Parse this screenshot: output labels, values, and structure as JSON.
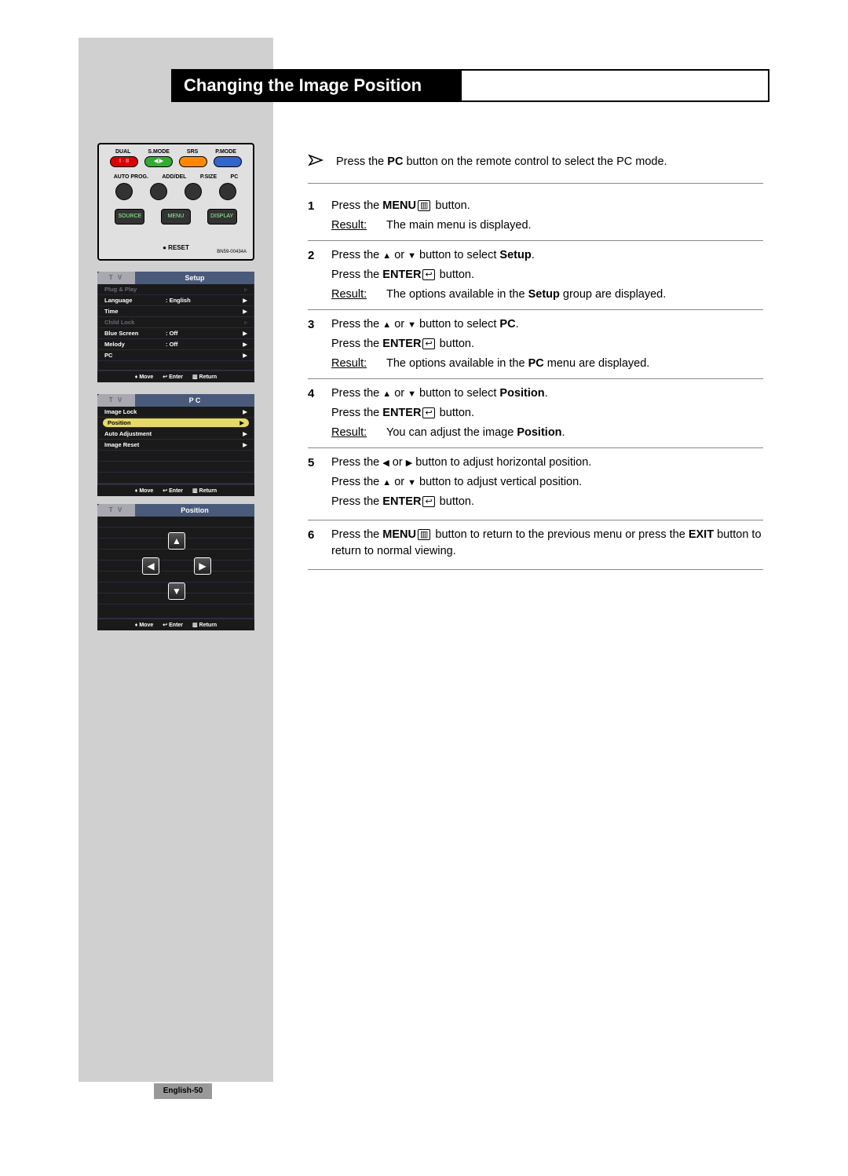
{
  "title": "Changing the Image Position",
  "page_label": "English-50",
  "note": {
    "pre": "Press the ",
    "bold": "PC",
    "post": " button on the remote control to select the PC mode."
  },
  "remote": {
    "row1": [
      "DUAL",
      "S.MODE",
      "SRS",
      "P.MODE"
    ],
    "pill_red": "I · II",
    "pill_green": "◀⸽▶",
    "row2": [
      "AUTO PROG.",
      "ADD/DEL",
      "P.SIZE",
      "PC"
    ],
    "mid": [
      "SOURCE",
      "MENU",
      "DISPLAY"
    ],
    "reset": "● RESET",
    "model": "BN59-00434A"
  },
  "osd_setup": {
    "tv": "T V",
    "title": "Setup",
    "rows": [
      {
        "label": "Plug & Play",
        "val": "",
        "dim": true,
        "arrow": "▹"
      },
      {
        "label": "Language",
        "val": ":  English",
        "dim": false,
        "arrow": "▶"
      },
      {
        "label": "Time",
        "val": "",
        "dim": false,
        "arrow": "▶"
      },
      {
        "label": "Child Lock",
        "val": "",
        "dim": true,
        "arrow": "▹"
      },
      {
        "label": "Blue Screen",
        "val": ":  Off",
        "dim": false,
        "arrow": "▶"
      },
      {
        "label": "Melody",
        "val": ":  Off",
        "dim": false,
        "arrow": "▶"
      },
      {
        "label": "PC",
        "val": "",
        "dim": false,
        "arrow": "▶"
      }
    ],
    "footer": {
      "move": "Move",
      "enter": "Enter",
      "return": "Return"
    }
  },
  "osd_pc": {
    "tv": "T V",
    "title": "P C",
    "rows": [
      {
        "label": "Image Lock",
        "selected": false,
        "arrow": "▶"
      },
      {
        "label": "Position",
        "selected": true,
        "arrow": "▶"
      },
      {
        "label": "Auto Adjustment",
        "selected": false,
        "arrow": "▶"
      },
      {
        "label": "Image Reset",
        "selected": false,
        "arrow": "▶"
      }
    ],
    "footer": {
      "move": "Move",
      "enter": "Enter",
      "return": "Return"
    }
  },
  "osd_position": {
    "tv": "T V",
    "title": "Position",
    "footer": {
      "move": "Move",
      "enter": "Enter",
      "return": "Return"
    }
  },
  "steps": [
    {
      "num": "1",
      "lines": [
        {
          "parts": [
            {
              "t": "Press the "
            },
            {
              "t": "MENU",
              "b": true
            },
            {
              "glyph": "▥"
            },
            {
              "t": "   button."
            }
          ]
        }
      ],
      "result": "The main menu is displayed."
    },
    {
      "num": "2",
      "lines": [
        {
          "parts": [
            {
              "t": "Press the "
            },
            {
              "tri": "▲"
            },
            {
              "t": " or "
            },
            {
              "tri": "▼"
            },
            {
              "t": " button to select "
            },
            {
              "t": "Setup",
              "b": true
            },
            {
              "t": "."
            }
          ]
        },
        {
          "parts": [
            {
              "t": "Press the "
            },
            {
              "t": "ENTER",
              "b": true
            },
            {
              "glyph": "↩"
            },
            {
              "t": "  button."
            }
          ]
        }
      ],
      "result_parts": [
        {
          "t": "The options available in the "
        },
        {
          "t": "Setup",
          "b": true
        },
        {
          "t": " group are displayed."
        }
      ]
    },
    {
      "num": "3",
      "lines": [
        {
          "parts": [
            {
              "t": "Press the "
            },
            {
              "tri": "▲"
            },
            {
              "t": " or "
            },
            {
              "tri": "▼"
            },
            {
              "t": " button to select "
            },
            {
              "t": "PC",
              "b": true
            },
            {
              "t": "."
            }
          ]
        },
        {
          "parts": [
            {
              "t": "Press the "
            },
            {
              "t": "ENTER",
              "b": true
            },
            {
              "glyph": "↩"
            },
            {
              "t": "  button."
            }
          ]
        }
      ],
      "result_parts": [
        {
          "t": "The options available in the "
        },
        {
          "t": "PC",
          "b": true
        },
        {
          "t": " menu are displayed."
        }
      ]
    },
    {
      "num": "4",
      "lines": [
        {
          "parts": [
            {
              "t": "Press the "
            },
            {
              "tri": "▲"
            },
            {
              "t": " or "
            },
            {
              "tri": "▼"
            },
            {
              "t": " button to select "
            },
            {
              "t": "Position",
              "b": true
            },
            {
              "t": "."
            }
          ]
        },
        {
          "parts": [
            {
              "t": "Press the "
            },
            {
              "t": "ENTER",
              "b": true
            },
            {
              "glyph": "↩"
            },
            {
              "t": "  button."
            }
          ]
        }
      ],
      "result_parts": [
        {
          "t": "You can adjust the image "
        },
        {
          "t": "Position",
          "b": true
        },
        {
          "t": "."
        }
      ]
    },
    {
      "num": "5",
      "lines": [
        {
          "parts": [
            {
              "t": "Press the "
            },
            {
              "tri": "◀"
            },
            {
              "t": " or "
            },
            {
              "tri": "▶"
            },
            {
              "t": " button to adjust horizontal position."
            }
          ]
        },
        {
          "parts": [
            {
              "t": "Press the "
            },
            {
              "tri": "▲"
            },
            {
              "t": " or "
            },
            {
              "tri": "▼"
            },
            {
              "t": " button to adjust vertical position."
            }
          ]
        },
        {
          "parts": [
            {
              "t": "Press the "
            },
            {
              "t": "ENTER",
              "b": true
            },
            {
              "glyph": "↩"
            },
            {
              "t": "  button."
            }
          ]
        }
      ]
    },
    {
      "num": "6",
      "lines": [
        {
          "parts": [
            {
              "t": "Press the "
            },
            {
              "t": "MENU",
              "b": true
            },
            {
              "glyph": "▥"
            },
            {
              "t": " button to return to the previous menu or press the "
            },
            {
              "t": "EXIT",
              "b": true
            },
            {
              "t": " button to return to normal viewing."
            }
          ]
        }
      ]
    }
  ],
  "result_label": "Result",
  "colors": {
    "sidebar": "#d0d0d0",
    "title_bg": "#000000",
    "osd_bg": "#1a1a1a",
    "osd_header": "#4a5a7a",
    "osd_tab": "#a8a8b0",
    "osd_selected": "#e6d96a",
    "rule": "#888888"
  }
}
